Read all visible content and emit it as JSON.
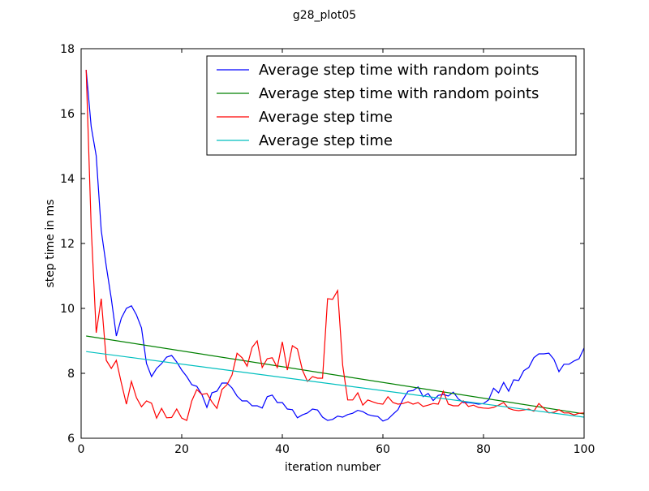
{
  "chart_data": {
    "type": "line",
    "title": "g28_plot05",
    "xlabel": "iteration number",
    "ylabel": "step time in ms",
    "xlim": [
      0,
      100
    ],
    "ylim": [
      6,
      18
    ],
    "xticks": [
      "0",
      "20",
      "40",
      "60",
      "80",
      "100"
    ],
    "yticks": [
      "6",
      "8",
      "10",
      "12",
      "14",
      "16",
      "18"
    ],
    "grid": false,
    "legend_position": "top-right",
    "series": [
      {
        "name": "Average step time with random points",
        "color": "#0000ff",
        "x": [
          1,
          2,
          3,
          4,
          5,
          6,
          7,
          8,
          9,
          10,
          11,
          12,
          13,
          14,
          15,
          16,
          17,
          18,
          19,
          20,
          21,
          22,
          23,
          24,
          25,
          26,
          27,
          28,
          29,
          30,
          31,
          32,
          33,
          34,
          35,
          36,
          37,
          38,
          39,
          40,
          41,
          42,
          43,
          44,
          45,
          46,
          47,
          48,
          49,
          50,
          51,
          52,
          53,
          54,
          55,
          56,
          57,
          58,
          59,
          60,
          61,
          62,
          63,
          64,
          65,
          66,
          67,
          68,
          69,
          70,
          71,
          72,
          73,
          74,
          75,
          76,
          77,
          78,
          79,
          80,
          81,
          82,
          83,
          84,
          85,
          86,
          87,
          88,
          89,
          90,
          91,
          92,
          93,
          94,
          95,
          96,
          97,
          98,
          99,
          100
        ],
        "y": [
          17.35,
          15.6,
          14.7,
          12.4,
          11.3,
          10.3,
          9.15,
          9.7,
          10.0,
          10.08,
          9.8,
          9.4,
          8.3,
          7.9,
          8.15,
          8.3,
          8.5,
          8.55,
          8.35,
          8.1,
          7.9,
          7.65,
          7.6,
          7.35,
          6.95,
          7.4,
          7.45,
          7.7,
          7.7,
          7.55,
          7.3,
          7.15,
          7.15,
          7.0,
          7.0,
          6.93,
          7.28,
          7.33,
          7.1,
          7.1,
          6.9,
          6.88,
          6.63,
          6.72,
          6.78,
          6.9,
          6.87,
          6.65,
          6.55,
          6.58,
          6.68,
          6.65,
          6.73,
          6.77,
          6.86,
          6.82,
          6.73,
          6.69,
          6.67,
          6.53,
          6.59,
          6.74,
          6.88,
          7.2,
          7.45,
          7.47,
          7.58,
          7.28,
          7.38,
          7.16,
          7.32,
          7.35,
          7.3,
          7.42,
          7.21,
          7.1,
          7.1,
          7.08,
          7.05,
          7.07,
          7.18,
          7.54,
          7.4,
          7.72,
          7.45,
          7.8,
          7.78,
          8.08,
          8.18,
          8.48,
          8.6,
          8.6,
          8.62,
          8.43,
          8.05,
          8.28,
          8.28,
          8.38,
          8.45,
          8.78
        ]
      },
      {
        "name": "Average step time with random points",
        "color": "#008000",
        "x": [
          1,
          100
        ],
        "y": [
          9.15,
          6.75
        ]
      },
      {
        "name": "Average step time",
        "color": "#ff0000",
        "x": [
          1,
          2,
          3,
          4,
          5,
          6,
          7,
          8,
          9,
          10,
          11,
          12,
          13,
          14,
          15,
          16,
          17,
          18,
          19,
          20,
          21,
          22,
          23,
          24,
          25,
          26,
          27,
          28,
          29,
          30,
          31,
          32,
          33,
          34,
          35,
          36,
          37,
          38,
          39,
          40,
          41,
          42,
          43,
          44,
          45,
          46,
          47,
          48,
          49,
          50,
          51,
          52,
          53,
          54,
          55,
          56,
          57,
          58,
          59,
          60,
          61,
          62,
          63,
          64,
          65,
          66,
          67,
          68,
          69,
          70,
          71,
          72,
          73,
          74,
          75,
          76,
          77,
          78,
          79,
          80,
          81,
          82,
          83,
          84,
          85,
          86,
          87,
          88,
          89,
          90,
          91,
          92,
          93,
          94,
          95,
          96,
          97,
          98,
          99,
          100
        ],
        "y": [
          17.35,
          12.5,
          9.25,
          10.3,
          8.4,
          8.15,
          8.4,
          7.7,
          7.05,
          7.75,
          7.25,
          6.97,
          7.15,
          7.08,
          6.62,
          6.92,
          6.63,
          6.64,
          6.9,
          6.62,
          6.55,
          7.15,
          7.5,
          7.35,
          7.38,
          7.12,
          6.92,
          7.5,
          7.65,
          7.95,
          8.62,
          8.48,
          8.22,
          8.8,
          9.0,
          8.18,
          8.45,
          8.48,
          8.18,
          8.97,
          8.1,
          8.85,
          8.75,
          8.1,
          7.75,
          7.9,
          7.85,
          7.85,
          10.3,
          10.28,
          10.55,
          8.25,
          7.18,
          7.18,
          7.4,
          7.02,
          7.18,
          7.12,
          7.07,
          7.05,
          7.28,
          7.1,
          7.05,
          7.07,
          7.12,
          7.05,
          7.1,
          6.98,
          7.02,
          7.07,
          7.05,
          7.45,
          7.05,
          7.0,
          7.0,
          7.15,
          6.98,
          7.02,
          6.95,
          6.93,
          6.92,
          6.95,
          7.02,
          7.1,
          6.92,
          6.87,
          6.85,
          6.87,
          6.9,
          6.83,
          7.07,
          6.92,
          6.78,
          6.8,
          6.88,
          6.78,
          6.78,
          6.72,
          6.77,
          6.78
        ]
      },
      {
        "name": "Average step time",
        "color": "#00bfbf",
        "x": [
          1,
          100
        ],
        "y": [
          8.67,
          6.65
        ]
      }
    ]
  }
}
